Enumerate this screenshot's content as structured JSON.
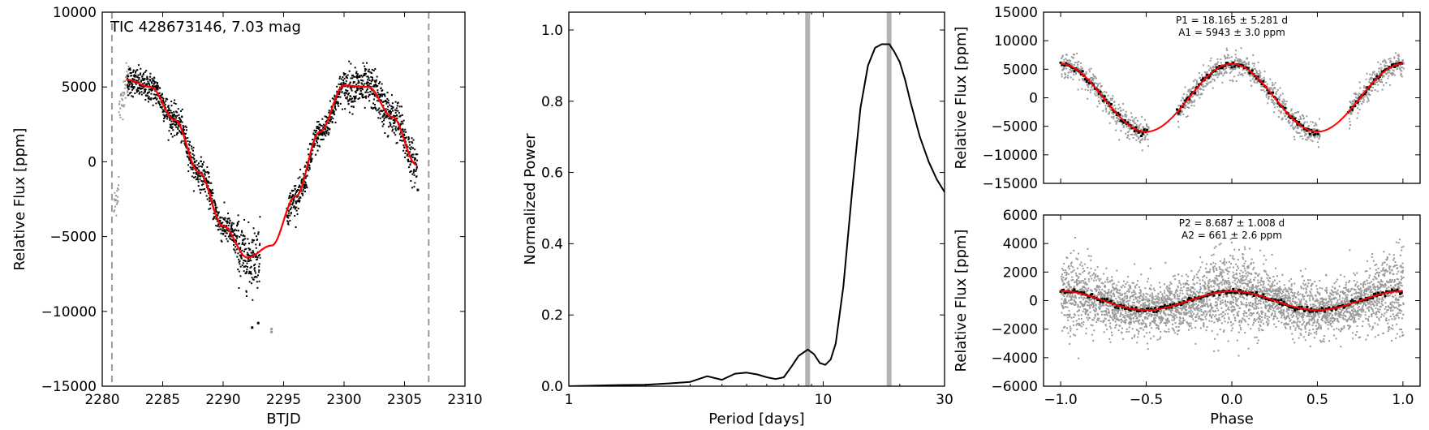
{
  "chart_data": [
    {
      "id": "lightcurve",
      "type": "scatter",
      "annotation": "TIC 428673146, 7.03 mag",
      "xlabel": "BTJD",
      "ylabel": "Relative Flux [ppm]",
      "xlim": [
        2280,
        2310
      ],
      "ylim": [
        -15000,
        10000
      ],
      "xticks": [
        2280,
        2285,
        2290,
        2295,
        2300,
        2305,
        2310
      ],
      "yticks": [
        -15000,
        -10000,
        -5000,
        0,
        5000,
        10000
      ],
      "x_start": 2280.5,
      "x_end": 2306.0,
      "vlines": [
        2280.8,
        2307.0
      ],
      "colors": {
        "data": "#000000",
        "gray_data": "#999999",
        "model": "#ff0000",
        "vline": "#999999"
      },
      "model": {
        "x": [
          2282.0,
          2284.0,
          2286.0,
          2288.0,
          2290.0,
          2292.0,
          2294.0,
          2296.0,
          2298.0,
          2300.0,
          2302.0,
          2304.0,
          2306.0
        ],
        "y": [
          5500,
          5000,
          2800,
          -700,
          -4300,
          -6400,
          -5600,
          -2300,
          2000,
          5100,
          5000,
          3000,
          -200
        ]
      }
    },
    {
      "id": "periodogram",
      "type": "line",
      "xlabel": "Period [days]",
      "ylabel": "Normalized Power",
      "xscale": "log",
      "xlim": [
        1,
        30
      ],
      "ylim": [
        0,
        1.05
      ],
      "xticks": [
        1,
        10,
        30
      ],
      "yticks": [
        0.0,
        0.2,
        0.4,
        0.6,
        0.8,
        1.0
      ],
      "highlight_periods": [
        8.687,
        18.165
      ],
      "colors": {
        "line": "#000000",
        "highlight": "#b3b3b3"
      },
      "x": [
        1.0,
        1.5,
        2.0,
        2.5,
        3.0,
        3.5,
        4.0,
        4.5,
        5.0,
        5.5,
        6.0,
        6.5,
        7.0,
        7.5,
        8.0,
        8.7,
        9.2,
        9.7,
        10.2,
        10.7,
        11.2,
        12.0,
        13.0,
        14.0,
        15.0,
        16.0,
        17.0,
        18.2,
        19.0,
        20.0,
        21.0,
        22.0,
        24.0,
        26.0,
        28.0,
        30.0
      ],
      "y": [
        0.0,
        0.003,
        0.004,
        0.008,
        0.012,
        0.028,
        0.018,
        0.035,
        0.038,
        0.033,
        0.025,
        0.02,
        0.025,
        0.055,
        0.085,
        0.103,
        0.09,
        0.065,
        0.06,
        0.075,
        0.12,
        0.28,
        0.55,
        0.78,
        0.9,
        0.95,
        0.96,
        0.96,
        0.94,
        0.91,
        0.86,
        0.8,
        0.7,
        0.63,
        0.58,
        0.545
      ]
    },
    {
      "id": "phase1",
      "type": "scatter",
      "annotation_lines": [
        "P1 = 18.165 ± 5.281 d",
        "A1 = 5943 ± 3.0 ppm"
      ],
      "ylabel": "Relative Flux [ppm]",
      "xlim": [
        -1.1,
        1.1
      ],
      "ylim": [
        -15000,
        15000
      ],
      "xticks": [
        -1.0,
        -0.5,
        0.0,
        0.5,
        1.0
      ],
      "yticks": [
        -15000,
        -10000,
        -5000,
        0,
        5000,
        10000,
        15000
      ],
      "amplitude": 5943,
      "gap": [
        -0.5,
        -0.3
      ],
      "colors": {
        "data": "#000000",
        "gray_data": "#999999",
        "model": "#ff0000"
      }
    },
    {
      "id": "phase2",
      "type": "scatter",
      "annotation_lines": [
        "P2 = 8.687 ± 1.008 d",
        "A2 = 661 ± 2.6 ppm"
      ],
      "xlabel": "Phase",
      "ylabel": "Relative Flux [ppm]",
      "xlim": [
        -1.1,
        1.1
      ],
      "ylim": [
        -6000,
        6000
      ],
      "xticks": [
        -1.0,
        -0.5,
        0.0,
        0.5,
        1.0
      ],
      "xtick_labels": [
        "−1.0",
        "−0.5",
        "0.0",
        "0.5",
        "1.0"
      ],
      "yticks": [
        -6000,
        -4000,
        -2000,
        0,
        2000,
        4000,
        6000
      ],
      "amplitude": 661,
      "colors": {
        "data": "#000000",
        "gray_data": "#999999",
        "model": "#ff0000"
      }
    }
  ]
}
